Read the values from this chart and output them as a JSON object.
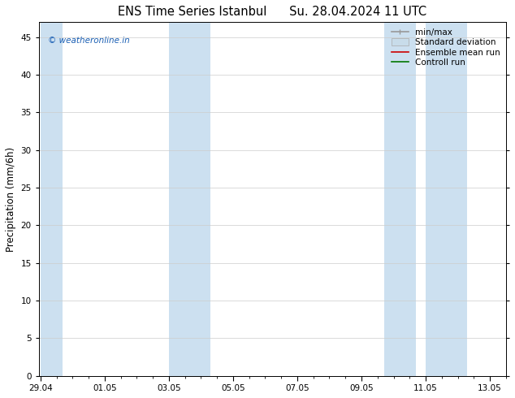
{
  "title_left": "ENS Time Series Istanbul",
  "title_right": "Su. 28.04.2024 11 UTC",
  "ylabel": "Precipitation (mm/6h)",
  "ylim": [
    0,
    47
  ],
  "yticks": [
    0,
    5,
    10,
    15,
    20,
    25,
    30,
    35,
    40,
    45
  ],
  "xlabel_ticks": [
    "29.04",
    "01.05",
    "03.05",
    "05.05",
    "07.05",
    "09.05",
    "11.05",
    "13.05"
  ],
  "xlabel_tick_positions": [
    0,
    2,
    4,
    6,
    8,
    10,
    12,
    14
  ],
  "xlim": [
    -0.05,
    14.5
  ],
  "background_color": "#ffffff",
  "plot_bg_color": "#ffffff",
  "shaded_bands": [
    [
      0.0,
      0.7
    ],
    [
      4.0,
      5.3
    ],
    [
      10.7,
      11.7
    ],
    [
      12.0,
      13.3
    ]
  ],
  "shaded_color": "#cce0f0",
  "watermark_text": "© weatheronline.in",
  "watermark_color": "#1a5fb4",
  "tick_label_fontsize": 7.5,
  "title_fontsize": 10.5,
  "ylabel_fontsize": 8.5,
  "legend_fontsize": 7.5,
  "minmax_color": "#999999",
  "stddev_color": "#c8dcea",
  "mean_color": "#cc0000",
  "control_color": "#007700"
}
